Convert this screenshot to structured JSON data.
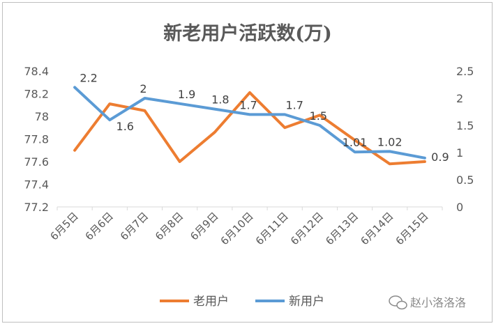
{
  "chart_data": {
    "type": "line",
    "title": "新老用户活跃数(万)",
    "categories": [
      "6月5日",
      "6月6日",
      "6月7日",
      "6月8日",
      "6月9日",
      "6月10日",
      "6月11日",
      "6月12日",
      "6月13日",
      "6月14日",
      "6月15日"
    ],
    "series": [
      {
        "name": "老用户",
        "axis": "left",
        "color": "#ED7D31",
        "values": [
          77.7,
          78.11,
          78.05,
          77.6,
          77.86,
          78.21,
          77.9,
          78.01,
          77.79,
          77.58,
          77.6
        ]
      },
      {
        "name": "新用户",
        "axis": "right",
        "color": "#5B9BD5",
        "values": [
          2.2,
          1.6,
          2.0,
          1.9,
          1.8,
          1.7,
          1.7,
          1.5,
          1.01,
          1.02,
          0.9
        ],
        "labels": [
          "2.2",
          "1.6",
          "2",
          "1.9",
          "1.8",
          "1.7",
          "1.7",
          "1.5",
          "1.01",
          "1.02",
          "0.9"
        ]
      }
    ],
    "y_left": {
      "min": 77.2,
      "max": 78.4,
      "ticks": [
        "77.2",
        "77.4",
        "77.6",
        "77.8",
        "78",
        "78.2",
        "78.4"
      ]
    },
    "y_right": {
      "min": 0,
      "max": 2.5,
      "ticks": [
        "0",
        "0.5",
        "1",
        "1.5",
        "2",
        "2.5"
      ]
    },
    "grid": false,
    "legend": "bottom"
  },
  "watermark": {
    "text": "赵小洛洛洛",
    "icon": "wechat-icon"
  }
}
